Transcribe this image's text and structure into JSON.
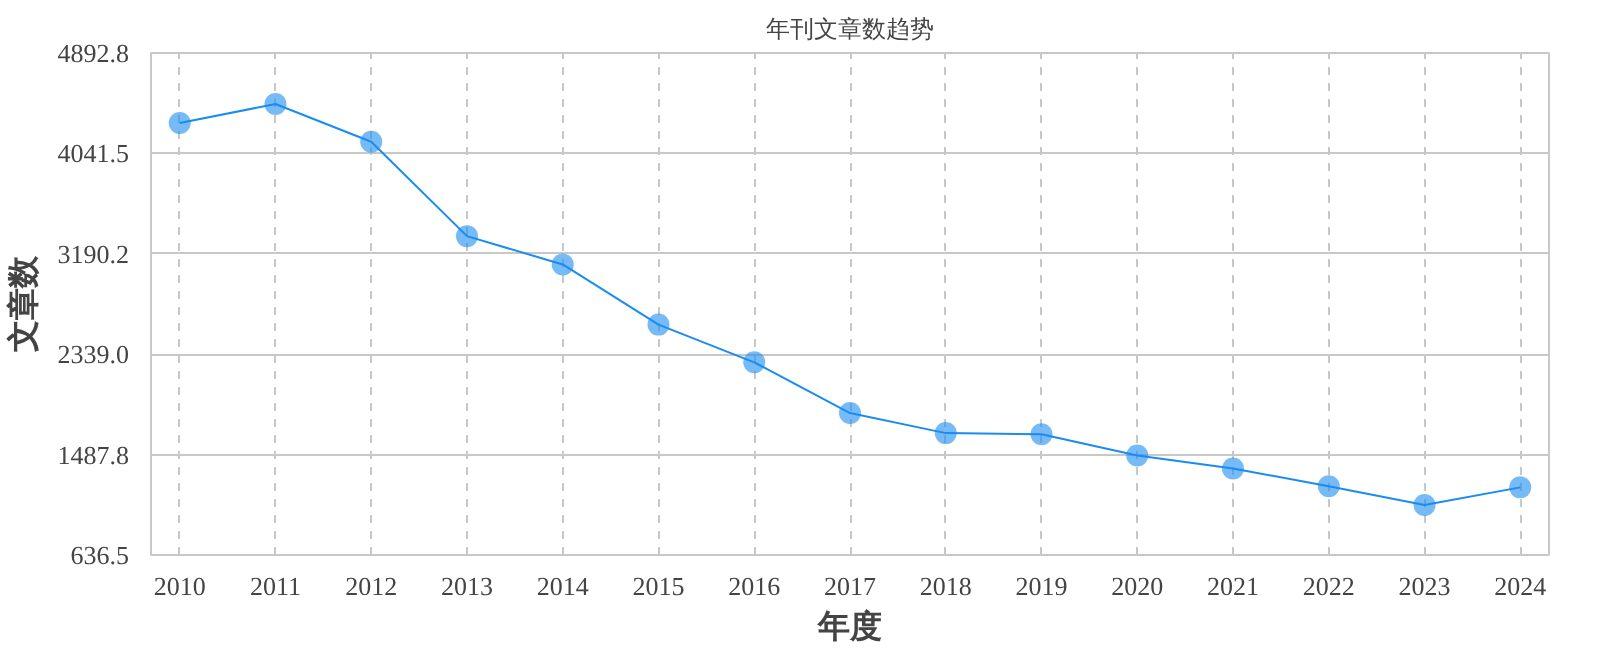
{
  "chart_data": {
    "type": "line",
    "title": "年刊文章数趋势",
    "xlabel": "年度",
    "ylabel": "文章数",
    "categories": [
      "2010",
      "2011",
      "2012",
      "2013",
      "2014",
      "2015",
      "2016",
      "2017",
      "2018",
      "2019",
      "2020",
      "2021",
      "2022",
      "2023",
      "2024"
    ],
    "series": [
      {
        "color": "#1a8cf0",
        "values": [
          4300,
          4460,
          4140,
          3340,
          3100,
          2590,
          2270,
          1840,
          1670,
          1660,
          1480,
          1370,
          1220,
          1060,
          1210
        ]
      }
    ],
    "ylim": [
      636.5,
      4892.8
    ],
    "yticks": [
      636.5,
      1487.8,
      {
        "value": 2339,
        "label": "2339.0"
      },
      3190.2,
      4041.5,
      4892.8
    ],
    "grid": true,
    "marker": "circle",
    "line_style": "solid"
  }
}
